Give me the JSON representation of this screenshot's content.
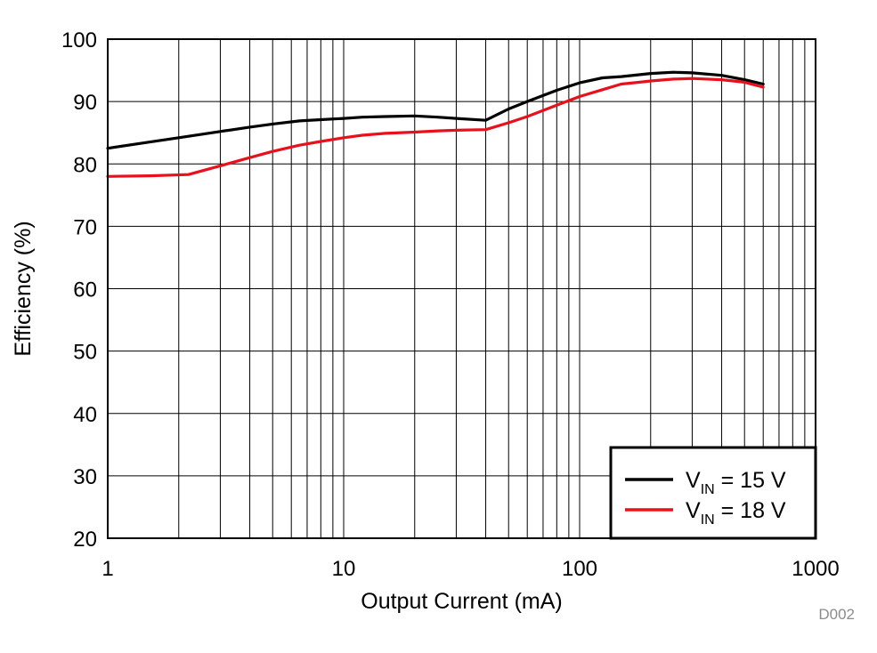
{
  "chart_data": {
    "type": "line",
    "xlabel": "Output Current (mA)",
    "ylabel": "Efficiency (%)",
    "xscale": "log",
    "xlim": [
      1,
      1000
    ],
    "ylim": [
      20,
      100
    ],
    "xticks": [
      "1",
      "10",
      "100",
      "1000"
    ],
    "yticks": [
      "20",
      "30",
      "40",
      "50",
      "60",
      "70",
      "80",
      "90",
      "100"
    ],
    "grid": true,
    "legend_position": "bottom-right",
    "figure_id": "D002",
    "series": [
      {
        "name_main": "V",
        "name_sub": "IN",
        "name_rest": " = 15 V",
        "color": "#000000",
        "x": [
          1,
          1.5,
          2,
          3,
          4,
          5,
          6.5,
          8,
          10,
          12,
          15,
          20,
          25,
          30,
          40,
          50,
          60,
          80,
          100,
          125,
          150,
          200,
          250,
          300,
          400,
          500,
          600
        ],
        "y": [
          82.5,
          83.5,
          84.2,
          85.2,
          85.9,
          86.4,
          86.9,
          87.1,
          87.3,
          87.5,
          87.6,
          87.7,
          87.5,
          87.3,
          87.0,
          88.8,
          90.0,
          91.8,
          93.0,
          93.8,
          94.0,
          94.5,
          94.7,
          94.6,
          94.2,
          93.5,
          92.8
        ]
      },
      {
        "name_main": "V",
        "name_sub": "IN",
        "name_rest": " = 18 V",
        "color": "#e8101b",
        "x": [
          1,
          1.5,
          2.2,
          3,
          4,
          5,
          6.5,
          8,
          10,
          12,
          15,
          20,
          25,
          30,
          40,
          50,
          60,
          80,
          100,
          125,
          150,
          180,
          200,
          250,
          300,
          400,
          500,
          600
        ],
        "y": [
          78.0,
          78.1,
          78.3,
          79.7,
          81.0,
          82.0,
          83.0,
          83.6,
          84.2,
          84.6,
          84.9,
          85.1,
          85.3,
          85.4,
          85.5,
          86.6,
          87.6,
          89.4,
          90.8,
          91.9,
          92.8,
          93.1,
          93.3,
          93.6,
          93.7,
          93.5,
          93.1,
          92.3
        ]
      }
    ]
  }
}
